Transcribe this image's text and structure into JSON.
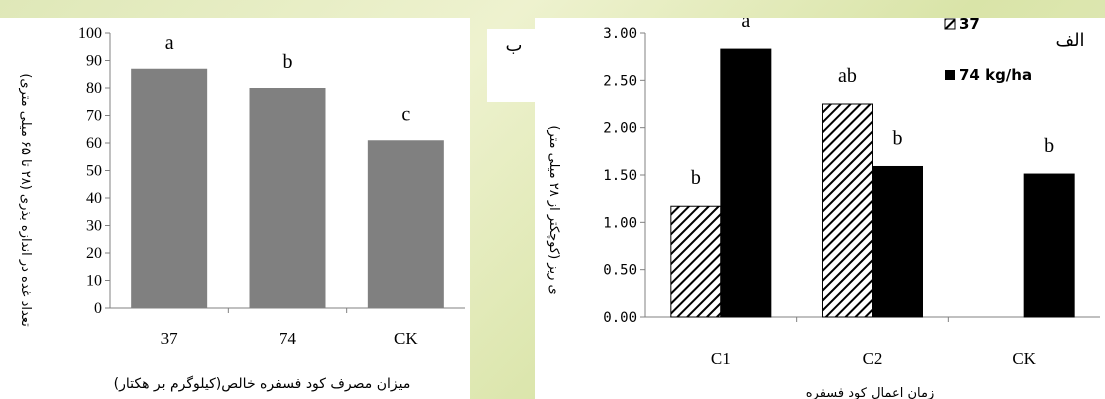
{
  "chart_data": [
    {
      "type": "bar",
      "panel_label": "ب",
      "categories": [
        "37",
        "74",
        "CK"
      ],
      "values": [
        87,
        80,
        61
      ],
      "letters": [
        "a",
        "b",
        "c"
      ],
      "ylabel": "تعداد غده در اندازه بذری (۲۸ تا ۶۵ میلی متری)",
      "xlabel": "میزان مصرف کود فسفره خالص(کیلوگرم بر هکتار)",
      "ylim": [
        0,
        100
      ],
      "yticks": [
        "0",
        "10",
        "20",
        "30",
        "40",
        "50",
        "60",
        "70",
        "80",
        "90",
        "100"
      ],
      "bar_color": "#808080",
      "grid": false
    },
    {
      "type": "bar",
      "panel_label": "الف",
      "categories": [
        "C1",
        "C2",
        "CK"
      ],
      "series": [
        {
          "name": "37",
          "values": [
            1.17,
            2.25,
            null
          ],
          "letters": [
            "b",
            "ab",
            ""
          ],
          "pattern": "hatch"
        },
        {
          "name": "74 kg/ha",
          "values": [
            2.83,
            1.59,
            1.51
          ],
          "letters": [
            "a",
            "b",
            "b"
          ],
          "pattern": "solid"
        }
      ],
      "ylabel": "ی ریز (کوچکتر از ۲۸ میلی متر)",
      "xlabel": "زمان اعمال کود فسفره",
      "ylim": [
        0,
        3
      ],
      "yticks": [
        "0.00",
        "0.50",
        "1.00",
        "1.50",
        "2.00",
        "2.50",
        "3.00"
      ],
      "legend_position": "top-right",
      "grid": false
    }
  ],
  "colors": {
    "dark": "#000000",
    "gray": "#808080",
    "panel_bg": "#ffffff"
  }
}
